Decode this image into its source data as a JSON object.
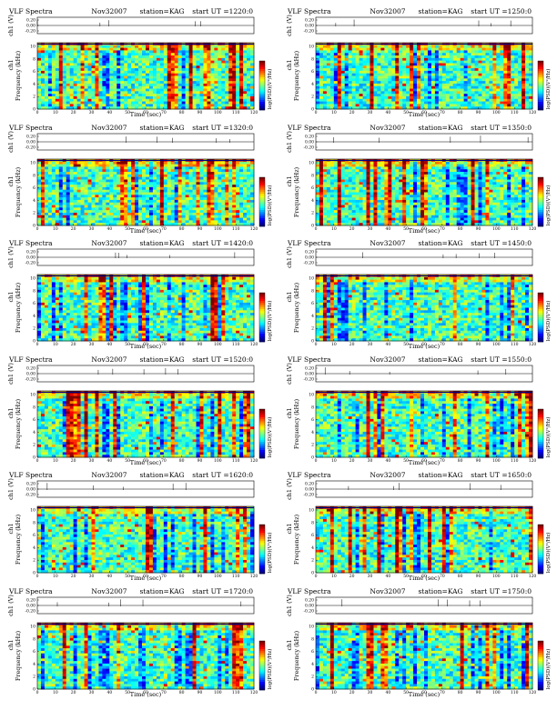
{
  "page": {
    "title_prefix": "VLF Spectra",
    "date": "Nov32007",
    "station": "station=KAG",
    "start_prefix": "start UT =",
    "ch_label": "ch1 (V)",
    "ch_ticks": [
      "0.20",
      "0.00",
      "-0.20"
    ],
    "spec_ylabel": "Frequency (kHz)",
    "spec_ylabel_left": "ch1",
    "xlabel": "Time (sec)",
    "cbar_label": "log(PSD)(V²/Hz)",
    "freq_ticks": [
      "0",
      "2",
      "4",
      "6",
      "8",
      "10"
    ],
    "time_ticks": [
      "0",
      "10",
      "20",
      "30",
      "40",
      "50",
      "60",
      "70",
      "80",
      "90",
      "100",
      "110",
      "120"
    ]
  },
  "colors": {
    "deep_blue": "#000080",
    "blue": "#0000ff",
    "cyan": "#00ffff",
    "green": "#00ff80",
    "yellow": "#ffff00",
    "red": "#ff0000"
  },
  "chart_data": [
    {
      "type": "heatmap",
      "start_ut": "1220:0",
      "x_range_sec": [
        0,
        120
      ],
      "y_range_khz": [
        0,
        10
      ]
    },
    {
      "type": "heatmap",
      "start_ut": "1250:0",
      "x_range_sec": [
        0,
        120
      ],
      "y_range_khz": [
        0,
        10
      ]
    },
    {
      "type": "heatmap",
      "start_ut": "1320:0",
      "x_range_sec": [
        0,
        120
      ],
      "y_range_khz": [
        0,
        10
      ]
    },
    {
      "type": "heatmap",
      "start_ut": "1350:0",
      "x_range_sec": [
        0,
        120
      ],
      "y_range_khz": [
        0,
        10
      ]
    },
    {
      "type": "heatmap",
      "start_ut": "1420:0",
      "x_range_sec": [
        0,
        120
      ],
      "y_range_khz": [
        0,
        10
      ]
    },
    {
      "type": "heatmap",
      "start_ut": "1450:0",
      "x_range_sec": [
        0,
        120
      ],
      "y_range_khz": [
        0,
        10
      ]
    },
    {
      "type": "heatmap",
      "start_ut": "1520:0",
      "x_range_sec": [
        0,
        120
      ],
      "y_range_khz": [
        0,
        10
      ]
    },
    {
      "type": "heatmap",
      "start_ut": "1550:0",
      "x_range_sec": [
        0,
        120
      ],
      "y_range_khz": [
        0,
        10
      ]
    },
    {
      "type": "heatmap",
      "start_ut": "1620:0",
      "x_range_sec": [
        0,
        120
      ],
      "y_range_khz": [
        0,
        10
      ]
    },
    {
      "type": "heatmap",
      "start_ut": "1650:0",
      "x_range_sec": [
        0,
        120
      ],
      "y_range_khz": [
        0,
        10
      ]
    },
    {
      "type": "heatmap",
      "start_ut": "1720:0",
      "x_range_sec": [
        0,
        120
      ],
      "y_range_khz": [
        0,
        10
      ]
    },
    {
      "type": "heatmap",
      "start_ut": "1750:0",
      "x_range_sec": [
        0,
        120
      ],
      "y_range_khz": [
        0,
        10
      ]
    }
  ]
}
